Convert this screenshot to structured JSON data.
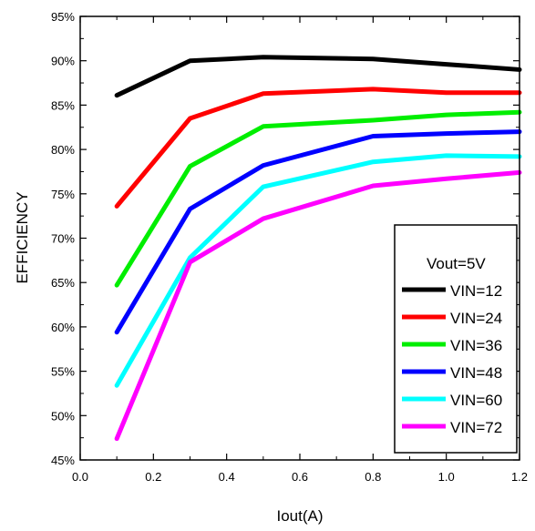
{
  "chart_data": {
    "type": "line",
    "xlabel": "Iout(A)",
    "ylabel": "EFFICIENCY",
    "xlim": [
      0.0,
      1.2
    ],
    "ylim": [
      45,
      95
    ],
    "xticks": [
      "0.0",
      "0.2",
      "0.4",
      "0.6",
      "0.8",
      "1.0",
      "1.2"
    ],
    "yticks": [
      "45%",
      "50%",
      "55%",
      "60%",
      "65%",
      "70%",
      "75%",
      "80%",
      "85%",
      "90%",
      "95%"
    ],
    "x": [
      0.1,
      0.3,
      0.5,
      0.8,
      1.0,
      1.2
    ],
    "legend_title": "Vout=5V",
    "legend_position": "bottom-right",
    "grid": false,
    "series": [
      {
        "name": "VIN=12",
        "color": "#000000",
        "values": [
          86.1,
          90.0,
          90.4,
          90.2,
          89.6,
          89.0
        ]
      },
      {
        "name": "VIN=24",
        "color": "#ff0000",
        "values": [
          73.6,
          83.5,
          86.3,
          86.8,
          86.4,
          86.4
        ]
      },
      {
        "name": "VIN=36",
        "color": "#00ee00",
        "values": [
          64.7,
          78.1,
          82.6,
          83.3,
          83.9,
          84.2
        ]
      },
      {
        "name": "VIN=48",
        "color": "#0000ff",
        "values": [
          59.4,
          73.3,
          78.2,
          81.5,
          81.8,
          82.0
        ]
      },
      {
        "name": "VIN=60",
        "color": "#00ffff",
        "values": [
          53.4,
          67.8,
          75.8,
          78.6,
          79.3,
          79.2
        ]
      },
      {
        "name": "VIN=72",
        "color": "#ff00ff",
        "values": [
          47.4,
          67.3,
          72.2,
          75.9,
          76.7,
          77.4
        ]
      }
    ]
  }
}
